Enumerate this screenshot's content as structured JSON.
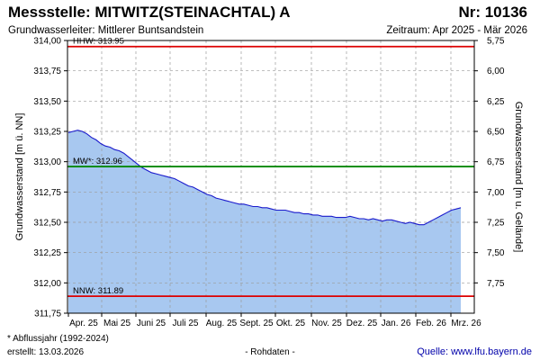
{
  "header": {
    "title": "Messstelle: MITWITZ(STEINACHTAL) A",
    "station_nr": "Nr: 10136",
    "aquifer": "Grundwasserleiter:  Mittlerer Buntsandstein",
    "period": "Zeitraum: Apr 2025 - Mär 2026"
  },
  "footer": {
    "footnote": "* Abflussjahr (1992-2024)",
    "created": "erstellt:  13.03.2026",
    "raw_note": "- Rohdaten -",
    "source": "Quelle: www.lfu.bayern.de"
  },
  "colors": {
    "fill": "#a8c8f0",
    "line": "#1a1acc",
    "hhw": "#dd0000",
    "mw": "#008800",
    "nnw": "#dd0000",
    "grid": "#9a9a9a"
  },
  "chart_data": {
    "type": "area",
    "ylabel_left": "Grundwasserstand [m ü. NN]",
    "ylabel_right": "Grundwasserstand [m u. Gelände]",
    "ylim": [
      311.75,
      314.0
    ],
    "yticks_left": [
      "311,75",
      "312,00",
      "312,25",
      "312,50",
      "312,75",
      "313,00",
      "313,25",
      "313,50",
      "313,75",
      "314,00"
    ],
    "yticks_right": [
      "5,75",
      "6,00",
      "6,25",
      "6,50",
      "6,75",
      "7,00",
      "7,25",
      "7,50",
      "7,75"
    ],
    "right_axis_ref": 319.75,
    "xticks": [
      "Apr. 25",
      "Mai 25",
      "Juni 25",
      "Juli 25",
      "Aug. 25",
      "Sept. 25",
      "Okt. 25",
      "Nov. 25",
      "Dez. 25",
      "Jan. 26",
      "Feb. 26",
      "Mrz. 26"
    ],
    "grid": true,
    "ref_lines": [
      {
        "label": "HHW: 313.95",
        "value": 313.95,
        "color": "#dd0000"
      },
      {
        "label": "MW*: 312.96",
        "value": 312.96,
        "color": "#008800"
      },
      {
        "label": "NNW: 311.89",
        "value": 311.89,
        "color": "#dd0000"
      }
    ],
    "series": [
      {
        "x": [
          0,
          4,
          8,
          12,
          16,
          20,
          24,
          28,
          32,
          36,
          40,
          44,
          48,
          52,
          56,
          60,
          64,
          68,
          72,
          76,
          80,
          84,
          88,
          92,
          96,
          100,
          104,
          108,
          112,
          116,
          120,
          124,
          128,
          132,
          136,
          140,
          144,
          148,
          152,
          156,
          160,
          164,
          168,
          172,
          176,
          180,
          184,
          188,
          192,
          196,
          200,
          204,
          208,
          212,
          216,
          220,
          224,
          228,
          232,
          236,
          240,
          244,
          248,
          252,
          256,
          260,
          264,
          268,
          272,
          276,
          280,
          284,
          288,
          292,
          296,
          300,
          304,
          308,
          312,
          316,
          320,
          324,
          328,
          332,
          336,
          340
        ],
        "y": [
          313.24,
          313.25,
          313.26,
          313.25,
          313.23,
          313.2,
          313.18,
          313.15,
          313.13,
          313.12,
          313.1,
          313.09,
          313.07,
          313.04,
          313.01,
          312.98,
          312.95,
          312.93,
          312.91,
          312.9,
          312.89,
          312.88,
          312.87,
          312.86,
          312.84,
          312.82,
          312.8,
          312.79,
          312.77,
          312.75,
          312.73,
          312.72,
          312.7,
          312.69,
          312.68,
          312.67,
          312.66,
          312.65,
          312.65,
          312.64,
          312.63,
          312.63,
          312.62,
          312.62,
          312.61,
          312.6,
          312.6,
          312.6,
          312.59,
          312.58,
          312.58,
          312.57,
          312.57,
          312.56,
          312.56,
          312.55,
          312.55,
          312.55,
          312.54,
          312.54,
          312.54,
          312.55,
          312.54,
          312.53,
          312.53,
          312.52,
          312.53,
          312.52,
          312.51,
          312.52,
          312.52,
          312.51,
          312.5,
          312.49,
          312.5,
          312.49,
          312.48,
          312.48,
          312.5,
          312.52,
          312.54,
          312.56,
          312.58,
          312.6,
          312.61,
          312.62
        ]
      }
    ]
  }
}
